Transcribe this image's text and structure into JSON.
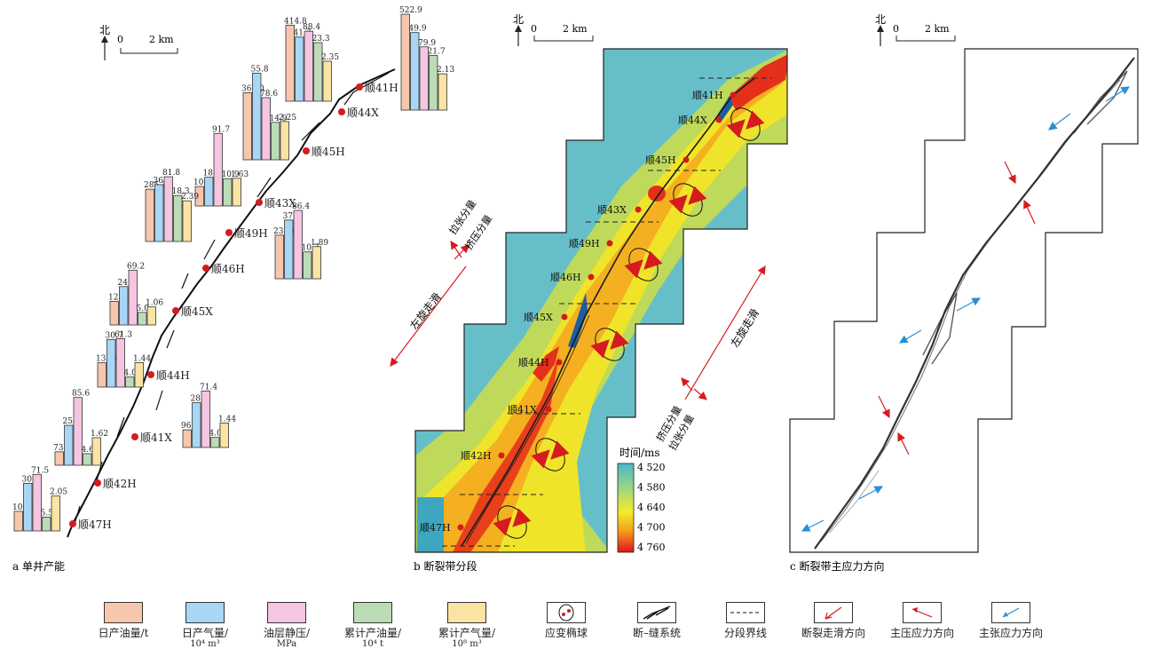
{
  "panels": {
    "a": {
      "caption": "a 单井产能"
    },
    "b": {
      "caption": "b 断裂带分段"
    },
    "c": {
      "caption": "c 断裂带主应力方向"
    }
  },
  "compass": {
    "north": "北",
    "zero": "0",
    "scale": "2 km"
  },
  "colors": {
    "oil": "#f6c7ad",
    "gas": "#a8d6f4",
    "pressure": "#f4c6e2",
    "cum_oil": "#bcdcb6",
    "cum_gas": "#fbe3a4",
    "marker": "#d51b20",
    "arrow_red": "#d51b20",
    "arrow_blue": "#2a8ed8"
  },
  "wells": [
    {
      "name": "顺41H",
      "values": [
        "522.9",
        "49.9",
        "79.9",
        "21.7",
        "2.13"
      ]
    },
    {
      "name": "顺44X",
      "values": [
        "414.8",
        "41.3",
        "88.4",
        "23.3",
        "2.35"
      ]
    },
    {
      "name": "顺45H",
      "values": [
        "366.0",
        "55.8",
        "78.6",
        "14.9",
        "2.25"
      ]
    },
    {
      "name": "顺43X",
      "values": [
        "106.4",
        "18.5",
        "91.7",
        "10.9",
        "1.63"
      ]
    },
    {
      "name": "顺49H",
      "values": [
        "285.1",
        "36.6",
        "81.8",
        "18.3",
        "2.39"
      ]
    },
    {
      "name": "顺46H",
      "values": [
        "238.1",
        "37.8",
        "86.4",
        "10.7",
        "1.89"
      ]
    },
    {
      "name": "顺45X",
      "values": [
        "128.5",
        "24.7",
        "69.2",
        "5.0",
        "1.06"
      ]
    },
    {
      "name": "顺44H",
      "values": [
        "133.1",
        "30.7",
        "61.3",
        "4.0",
        "1.44"
      ]
    },
    {
      "name": "顺41X",
      "values": [
        "96.1",
        "28.8",
        "71.4",
        "4.0",
        "1.44"
      ]
    },
    {
      "name": "顺42H",
      "values": [
        "73.4",
        "25.7",
        "85.6",
        "4.6",
        "1.62"
      ]
    },
    {
      "name": "顺47H",
      "values": [
        "106.8",
        "30.6",
        "71.5",
        "5.5",
        "2.05"
      ]
    }
  ],
  "panel_b": {
    "well_labels": [
      "顺41H",
      "顺44X",
      "顺45H",
      "顺43X",
      "顺49H",
      "顺46H",
      "顺45X",
      "顺44H",
      "顺41X",
      "顺42H",
      "顺47H"
    ],
    "tension_component": "拉张分量",
    "compression_component": "挤压分量",
    "left_strike_slip": "左旋走滑",
    "colorbar": {
      "title": "时间/ms",
      "ticks": [
        "4 520",
        "4 580",
        "4 640",
        "4 700",
        "4 760"
      ]
    }
  },
  "legend": [
    {
      "label": "日产油量/t",
      "sub": ""
    },
    {
      "label": "日产气量/",
      "sub": "10⁴ m³"
    },
    {
      "label": "油层静压/",
      "sub": "MPa"
    },
    {
      "label": "累计产油量/",
      "sub": "10⁴ t"
    },
    {
      "label": "累计产气量/",
      "sub": "10⁸ m³"
    },
    {
      "label": "应变椭球",
      "sub": ""
    },
    {
      "label": "断–缝系统",
      "sub": ""
    },
    {
      "label": "分段界线",
      "sub": ""
    },
    {
      "label": "断裂走滑方向",
      "sub": ""
    },
    {
      "label": "主压应力方向",
      "sub": ""
    },
    {
      "label": "主张应力方向",
      "sub": ""
    }
  ]
}
